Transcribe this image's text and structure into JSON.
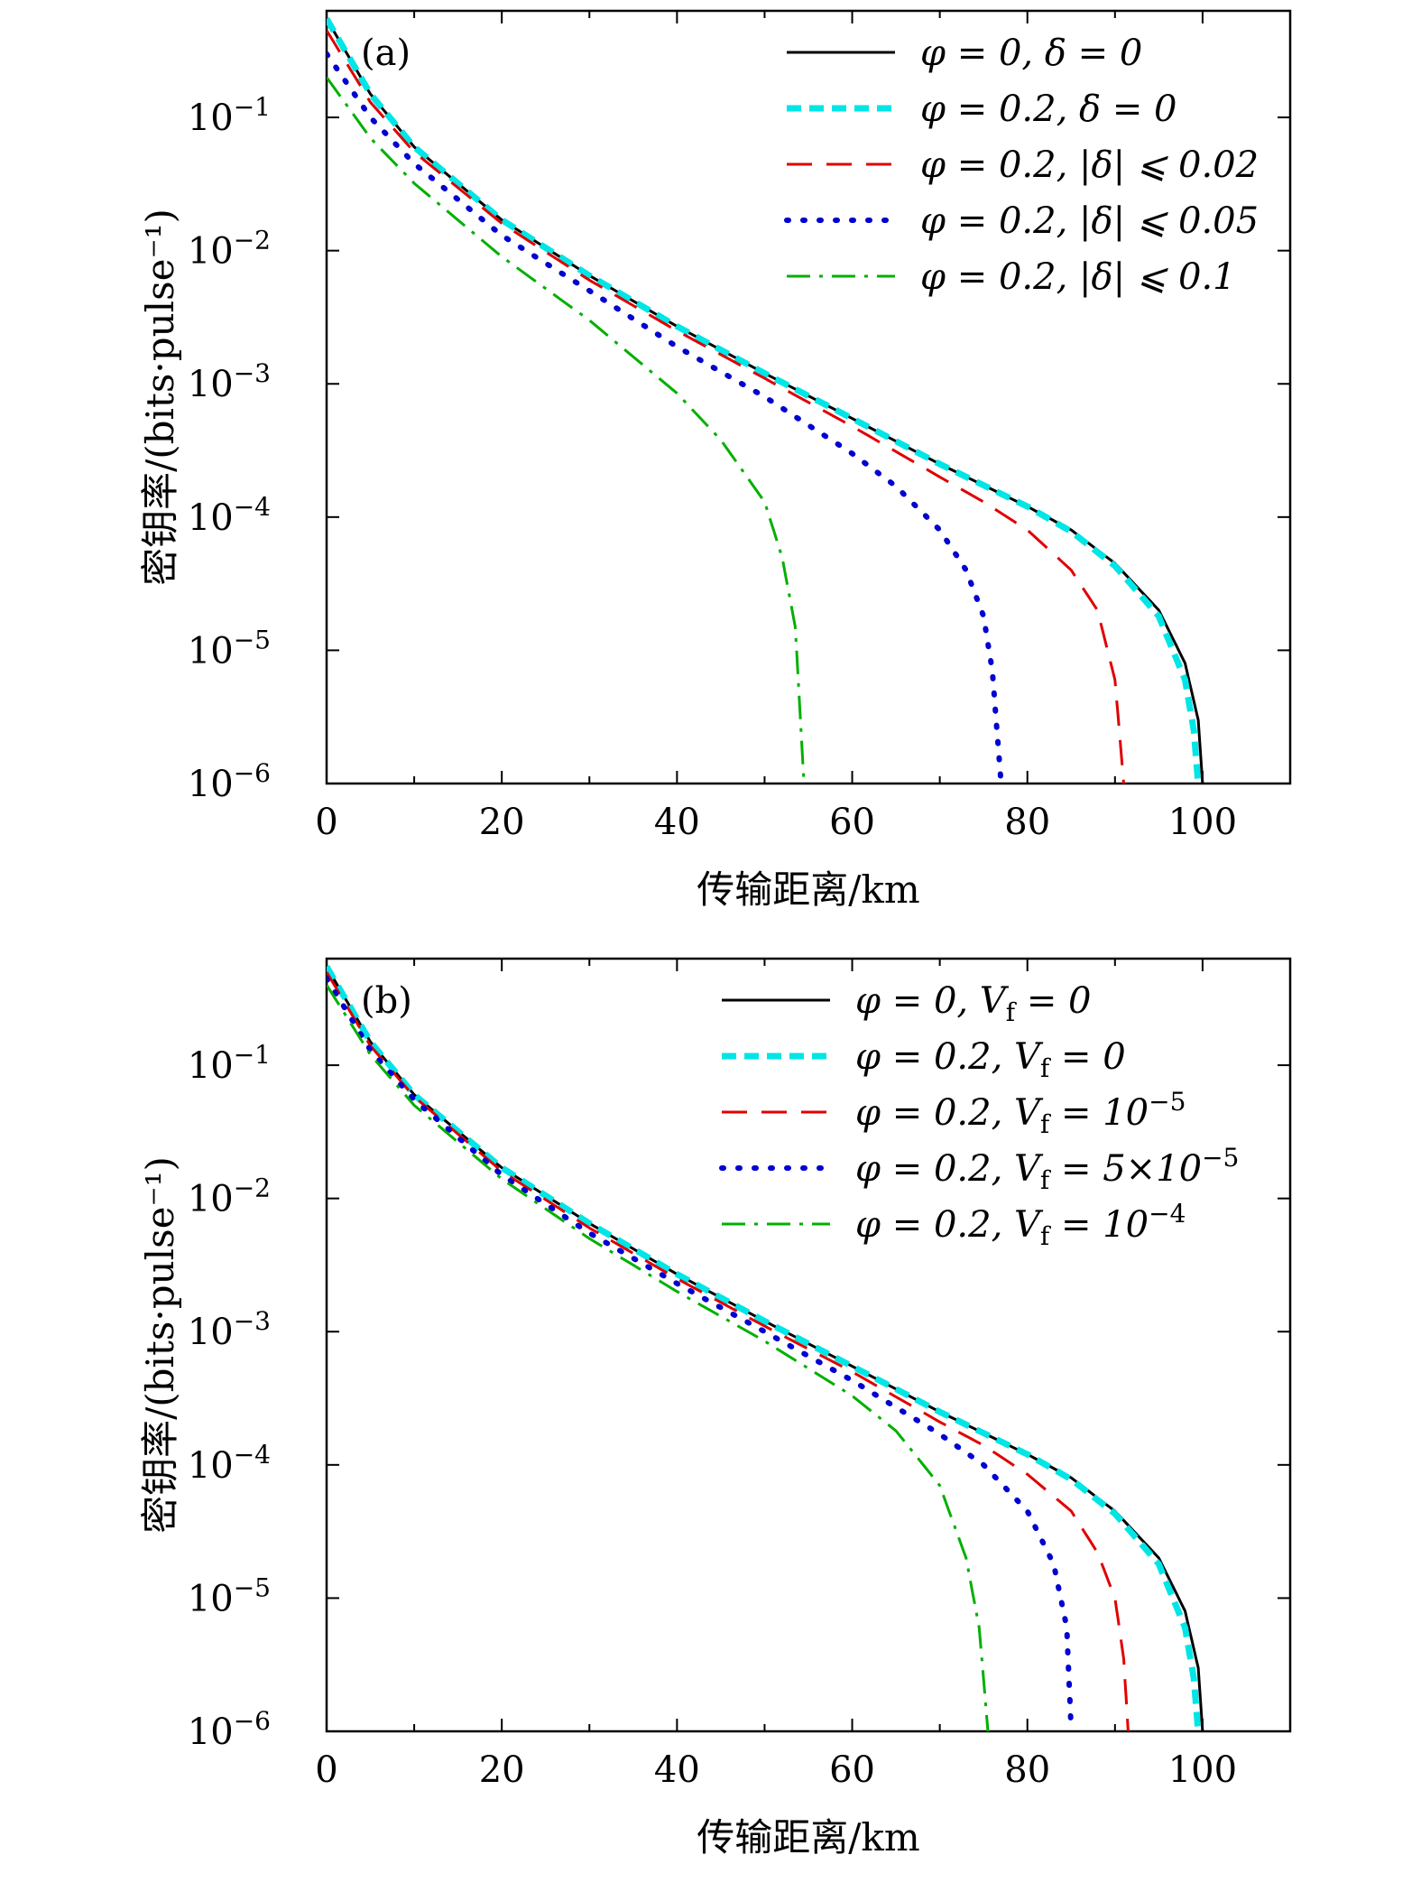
{
  "chart_data": [
    {
      "type": "line",
      "panel_label": "(a)",
      "xlabel": "传输距离/km",
      "ylabel": "密钥率/(bits·pulse⁻¹)",
      "xlim": [
        0,
        110
      ],
      "ylim_log10": [
        -6,
        -0.2
      ],
      "xticks": [
        0,
        20,
        40,
        60,
        80,
        100
      ],
      "yticks_log10": [
        -1,
        -2,
        -3,
        -4,
        -5,
        -6
      ],
      "ytick_base": "10",
      "ytick_exponents": [
        "−1",
        "−2",
        "−3",
        "−4",
        "−5",
        "−6"
      ],
      "legend_position": "top-right",
      "series": [
        {
          "name": "φ = 0, δ = 0",
          "style": "solid",
          "color": "#000000",
          "cutoff": 100.0,
          "x": [
            0,
            5,
            10,
            20,
            30,
            40,
            50,
            60,
            70,
            80,
            85,
            90,
            95,
            98,
            99.5,
            100
          ],
          "y": [
            0.55,
            0.15,
            0.06,
            0.017,
            0.0065,
            0.0027,
            0.0012,
            0.00055,
            0.00025,
            0.00012,
            8e-05,
            4.5e-05,
            2e-05,
            8e-06,
            3e-06,
            1e-06
          ]
        },
        {
          "name": "φ = 0.2, δ = 0",
          "style": "dashed-thick",
          "color": "#00e5e5",
          "cutoff": 99.5,
          "x": [
            0,
            5,
            10,
            20,
            30,
            40,
            50,
            60,
            70,
            80,
            85,
            90,
            95,
            98,
            99,
            99.5
          ],
          "y": [
            0.55,
            0.15,
            0.06,
            0.017,
            0.0065,
            0.0027,
            0.0012,
            0.00055,
            0.00025,
            0.00012,
            7.8e-05,
            4.3e-05,
            1.8e-05,
            6e-06,
            2.5e-06,
            1e-06
          ]
        },
        {
          "name": "φ = 0.2, |δ| ⩽ 0.02",
          "style": "dashed",
          "color": "#e00000",
          "cutoff": 91.0,
          "x": [
            0,
            5,
            10,
            20,
            30,
            40,
            50,
            60,
            70,
            75,
            80,
            85,
            88,
            90,
            91
          ],
          "y": [
            0.45,
            0.13,
            0.055,
            0.016,
            0.006,
            0.0025,
            0.0011,
            0.00048,
            0.0002,
            0.00013,
            8e-05,
            4e-05,
            2e-05,
            6e-06,
            1e-06
          ]
        },
        {
          "name": "φ = 0.2, |δ| ⩽ 0.05",
          "style": "dotted",
          "color": "#0000d0",
          "cutoff": 77.0,
          "x": [
            0,
            5,
            10,
            20,
            30,
            40,
            50,
            60,
            65,
            70,
            73,
            75,
            76,
            77
          ],
          "y": [
            0.3,
            0.1,
            0.045,
            0.013,
            0.005,
            0.0019,
            0.0008,
            0.0003,
            0.00017,
            8e-05,
            4e-05,
            1.8e-05,
            7e-06,
            1e-06
          ]
        },
        {
          "name": "φ = 0.2, |δ| ⩽ 0.1",
          "style": "dashdot",
          "color": "#00b000",
          "cutoff": 54.5,
          "x": [
            0,
            5,
            10,
            20,
            30,
            40,
            45,
            50,
            52,
            53.5,
            54.5
          ],
          "y": [
            0.2,
            0.07,
            0.032,
            0.009,
            0.003,
            0.00085,
            0.00038,
            0.00013,
            5e-05,
            1.5e-05,
            1e-06
          ]
        }
      ]
    },
    {
      "type": "line",
      "panel_label": "(b)",
      "xlabel": "传输距离/km",
      "ylabel": "密钥率/(bits·pulse⁻¹)",
      "xlim": [
        0,
        110
      ],
      "ylim_log10": [
        -6,
        -0.2
      ],
      "xticks": [
        0,
        20,
        40,
        60,
        80,
        100
      ],
      "yticks_log10": [
        -1,
        -2,
        -3,
        -4,
        -5,
        -6
      ],
      "ytick_base": "10",
      "ytick_exponents": [
        "−1",
        "−2",
        "−3",
        "−4",
        "−5",
        "−6"
      ],
      "legend_position": "top-right",
      "series": [
        {
          "name": "φ = 0, Vf = 0",
          "style": "solid",
          "color": "#000000",
          "cutoff": 100.0,
          "x": [
            0,
            5,
            10,
            20,
            30,
            40,
            50,
            60,
            70,
            80,
            85,
            90,
            95,
            98,
            99.5,
            100
          ],
          "y": [
            0.55,
            0.15,
            0.06,
            0.017,
            0.0065,
            0.0027,
            0.0012,
            0.00055,
            0.00025,
            0.00012,
            8e-05,
            4.5e-05,
            2e-05,
            8e-06,
            3e-06,
            1e-06
          ]
        },
        {
          "name": "φ = 0.2, Vf = 0",
          "style": "dashed-thick",
          "color": "#00e5e5",
          "cutoff": 99.5,
          "x": [
            0,
            5,
            10,
            20,
            30,
            40,
            50,
            60,
            70,
            80,
            85,
            90,
            95,
            98,
            99,
            99.5
          ],
          "y": [
            0.55,
            0.15,
            0.06,
            0.017,
            0.0065,
            0.0027,
            0.0012,
            0.00055,
            0.00025,
            0.00012,
            7.8e-05,
            4.3e-05,
            1.8e-05,
            6e-06,
            2.5e-06,
            1e-06
          ]
        },
        {
          "name": "φ = 0.2, Vf = 10⁻⁵",
          "style": "dashed",
          "color": "#e00000",
          "cutoff": 91.5,
          "x": [
            0,
            5,
            10,
            20,
            30,
            40,
            50,
            60,
            70,
            75,
            80,
            85,
            88,
            90,
            91,
            91.5
          ],
          "y": [
            0.5,
            0.14,
            0.058,
            0.016,
            0.006,
            0.0025,
            0.0011,
            0.0005,
            0.00021,
            0.00014,
            8.5e-05,
            4.5e-05,
            2.2e-05,
            1e-05,
            3.5e-06,
            1e-06
          ]
        },
        {
          "name": "φ = 0.2, Vf = 5×10⁻⁵",
          "style": "dotted",
          "color": "#0000d0",
          "cutoff": 85.0,
          "x": [
            0,
            5,
            10,
            20,
            30,
            40,
            50,
            60,
            70,
            75,
            80,
            83,
            84.5,
            85
          ],
          "y": [
            0.45,
            0.13,
            0.055,
            0.015,
            0.0055,
            0.0023,
            0.001,
            0.00043,
            0.00017,
            0.0001,
            4.5e-05,
            1.8e-05,
            6e-06,
            1e-06
          ]
        },
        {
          "name": "φ = 0.2, Vf = 10⁻⁴",
          "style": "dashdot",
          "color": "#00b000",
          "cutoff": 75.5,
          "x": [
            0,
            5,
            10,
            20,
            30,
            40,
            50,
            60,
            65,
            70,
            73,
            74.5,
            75.5
          ],
          "y": [
            0.4,
            0.12,
            0.05,
            0.014,
            0.005,
            0.002,
            0.00085,
            0.00033,
            0.00018,
            7e-05,
            2e-05,
            6e-06,
            1e-06
          ]
        }
      ]
    }
  ],
  "legends": [
    [
      {
        "parts": [
          "φ",
          " = 0, ",
          "δ",
          " = 0"
        ]
      },
      {
        "parts": [
          "φ",
          " = 0.2, ",
          "δ",
          " = 0"
        ]
      },
      {
        "parts": [
          "φ",
          " = 0.2, |",
          "δ",
          "| ⩽ 0.02"
        ]
      },
      {
        "parts": [
          "φ",
          " = 0.2, |",
          "δ",
          "| ⩽ 0.05"
        ]
      },
      {
        "parts": [
          "φ",
          " = 0.2, |",
          "δ",
          "| ⩽ 0.1"
        ]
      }
    ],
    [
      {
        "parts": [
          "φ",
          " = 0, ",
          "V",
          "f",
          " = 0"
        ],
        "sub": [
          3
        ]
      },
      {
        "parts": [
          "φ",
          " = 0.2, ",
          "V",
          "f",
          " = 0"
        ],
        "sub": [
          3
        ]
      },
      {
        "parts": [
          "φ",
          " = 0.2, ",
          "V",
          "f",
          " = 10",
          "−5"
        ],
        "sub": [
          3
        ],
        "sup": [
          5
        ]
      },
      {
        "parts": [
          "φ",
          " = 0.2, ",
          "V",
          "f",
          " = 5×10",
          "−5"
        ],
        "sub": [
          3
        ],
        "sup": [
          5
        ]
      },
      {
        "parts": [
          "φ",
          " = 0.2, ",
          "V",
          "f",
          " = 10",
          "−4"
        ],
        "sub": [
          3
        ],
        "sup": [
          5
        ]
      }
    ]
  ]
}
